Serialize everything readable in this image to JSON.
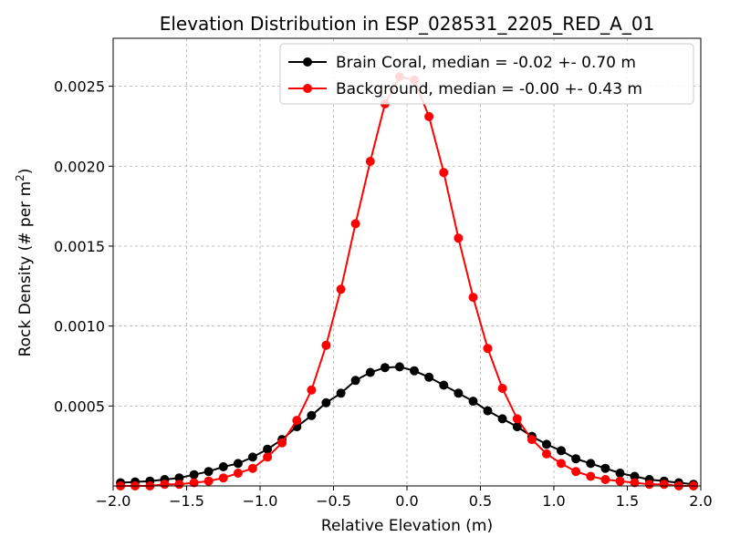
{
  "chart_data": {
    "type": "line",
    "title": "Elevation Distribution in ESP_028531_2205_RED_A_01",
    "xlabel": "Relative Elevation (m)",
    "ylabel_main": "Rock Density (# per m",
    "ylabel_sup": "2",
    "ylabel_end": ")",
    "xlim": [
      -2.0,
      2.0
    ],
    "ylim": [
      0,
      0.0028
    ],
    "xticks": [
      -2.0,
      -1.5,
      -1.0,
      -0.5,
      0.0,
      0.5,
      1.0,
      1.5,
      2.0
    ],
    "xtick_labels": [
      "−2.0",
      "−1.5",
      "−1.0",
      "−0.5",
      "0.0",
      "0.5",
      "1.0",
      "1.5",
      "2.0"
    ],
    "yticks": [
      0.0005,
      0.001,
      0.0015,
      0.002,
      0.0025
    ],
    "ytick_labels": [
      "0.0005",
      "0.0010",
      "0.0015",
      "0.0020",
      "0.0025"
    ],
    "grid": true,
    "legend_position": "top-right",
    "x": [
      -1.95,
      -1.85,
      -1.75,
      -1.65,
      -1.55,
      -1.45,
      -1.35,
      -1.25,
      -1.15,
      -1.05,
      -0.95,
      -0.85,
      -0.75,
      -0.65,
      -0.55,
      -0.45,
      -0.35,
      -0.25,
      -0.15,
      -0.05,
      0.05,
      0.15,
      0.25,
      0.35,
      0.45,
      0.55,
      0.65,
      0.75,
      0.85,
      0.95,
      1.05,
      1.15,
      1.25,
      1.35,
      1.45,
      1.55,
      1.65,
      1.75,
      1.85,
      1.95
    ],
    "series": [
      {
        "name": "Brain Coral, median = -0.02 +- 0.70 m",
        "color": "#000000",
        "values": [
          2e-05,
          2.5e-05,
          3e-05,
          4e-05,
          5e-05,
          7e-05,
          9e-05,
          0.00012,
          0.00014,
          0.00018,
          0.00023,
          0.00029,
          0.00037,
          0.00044,
          0.00052,
          0.00058,
          0.00066,
          0.00071,
          0.00074,
          0.000745,
          0.00072,
          0.00068,
          0.00063,
          0.00058,
          0.00053,
          0.00047,
          0.00042,
          0.00037,
          0.00031,
          0.00026,
          0.00022,
          0.00017,
          0.00014,
          0.00011,
          8e-05,
          6e-05,
          4e-05,
          3e-05,
          2e-05,
          1e-05
        ]
      },
      {
        "name": "Background, median = -0.00 +- 0.43 m",
        "color": "#ff0000",
        "values": [
          0.0,
          0.0,
          0.0,
          1e-05,
          1e-05,
          2e-05,
          3e-05,
          5e-05,
          8e-05,
          0.00011,
          0.00018,
          0.00027,
          0.00041,
          0.0006,
          0.00088,
          0.00123,
          0.00164,
          0.00203,
          0.00239,
          0.00256,
          0.00254,
          0.00231,
          0.00196,
          0.00155,
          0.00118,
          0.00086,
          0.00061,
          0.00042,
          0.00029,
          0.0002,
          0.00014,
          9e-05,
          6e-05,
          4e-05,
          3e-05,
          2e-05,
          1e-05,
          1e-05,
          0.0,
          0.0
        ]
      }
    ]
  }
}
